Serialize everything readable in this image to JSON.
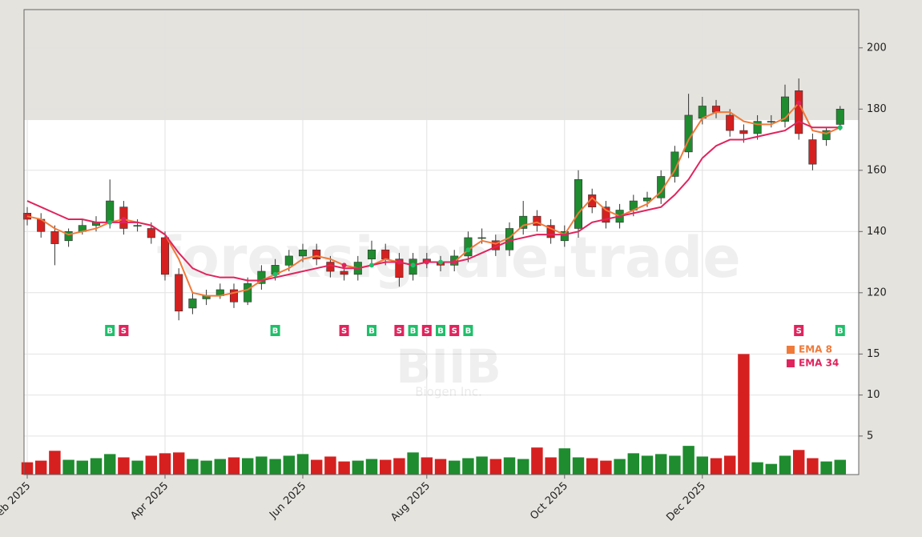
{
  "chart_data": {
    "type": "candlestick",
    "watermark": "forexsignale.trade",
    "symbol": "BIIB",
    "company": "Biogen Inc.",
    "categories": [
      "Feb 2025",
      null,
      null,
      null,
      null,
      null,
      null,
      null,
      null,
      null,
      "Apr 2025",
      null,
      null,
      null,
      null,
      null,
      null,
      null,
      null,
      null,
      "Jun 2025",
      null,
      null,
      null,
      null,
      null,
      null,
      null,
      null,
      "Aug 2025",
      null,
      null,
      null,
      null,
      null,
      null,
      null,
      null,
      null,
      "Oct 2025",
      null,
      null,
      null,
      null,
      null,
      null,
      null,
      null,
      null,
      "Dec 2025",
      null,
      null,
      null,
      null,
      null,
      null,
      null,
      null,
      null,
      null
    ],
    "open": [
      146,
      144,
      140,
      137,
      140,
      142,
      143,
      148,
      142,
      141,
      138,
      126,
      115,
      118,
      119,
      121,
      117,
      123,
      126,
      129,
      132,
      134,
      130,
      127,
      126,
      131,
      134,
      131,
      126,
      131,
      130,
      129,
      132,
      138,
      137,
      134,
      141,
      145,
      142,
      137,
      141,
      152,
      148,
      143,
      147,
      150,
      151,
      158,
      166,
      177,
      181,
      178,
      173,
      172,
      176,
      176,
      186,
      170,
      170,
      175
    ],
    "high": [
      148,
      146,
      142,
      141,
      144,
      145,
      157,
      150,
      144,
      143,
      140,
      128,
      120,
      121,
      123,
      123,
      125,
      129,
      131,
      134,
      136,
      136,
      132,
      129,
      132,
      137,
      136,
      133,
      133,
      133,
      132,
      134,
      140,
      141,
      139,
      143,
      150,
      147,
      144,
      142,
      160,
      154,
      150,
      149,
      152,
      153,
      160,
      168,
      185,
      184,
      183,
      180,
      175,
      178,
      178,
      188,
      190,
      172,
      174,
      181
    ],
    "low": [
      142,
      138,
      129,
      135,
      139,
      140,
      141,
      139,
      140,
      136,
      124,
      111,
      113,
      116,
      118,
      115,
      116,
      121,
      124,
      127,
      130,
      129,
      125,
      124,
      124,
      129,
      129,
      122,
      124,
      128,
      127,
      127,
      130,
      136,
      132,
      132,
      139,
      140,
      136,
      135,
      138,
      146,
      141,
      141,
      145,
      148,
      149,
      156,
      164,
      175,
      177,
      171,
      169,
      170,
      174,
      174,
      170,
      160,
      168,
      173
    ],
    "close": [
      144,
      140,
      136,
      140,
      142,
      143,
      150,
      141,
      142,
      138,
      126,
      114,
      118,
      119,
      121,
      117,
      123,
      127,
      129,
      132,
      134,
      131,
      127,
      126,
      130,
      134,
      131,
      125,
      131,
      130,
      129,
      132,
      138,
      138,
      134,
      141,
      145,
      142,
      138,
      140,
      157,
      148,
      143,
      147,
      150,
      151,
      158,
      166,
      178,
      181,
      179,
      173,
      172,
      176,
      176,
      184,
      172,
      162,
      173,
      180
    ],
    "volume": [
      1.8,
      2.0,
      3.2,
      2.1,
      2.0,
      2.3,
      2.8,
      2.4,
      2.0,
      2.6,
      2.9,
      3.0,
      2.2,
      2.0,
      2.2,
      2.4,
      2.3,
      2.5,
      2.2,
      2.6,
      2.8,
      2.1,
      2.5,
      1.9,
      2.0,
      2.2,
      2.1,
      2.3,
      3.0,
      2.4,
      2.2,
      2.0,
      2.3,
      2.5,
      2.2,
      2.4,
      2.2,
      3.6,
      2.4,
      3.5,
      2.4,
      2.3,
      2.0,
      2.2,
      2.9,
      2.6,
      2.8,
      2.6,
      3.8,
      2.5,
      2.3,
      2.6,
      15,
      1.8,
      1.6,
      2.6,
      3.3,
      2.3,
      1.9,
      2.1
    ],
    "up_color": "#1e8c2f",
    "down_color": "#d62020",
    "series": [
      {
        "name": "EMA 8",
        "color": "#f07a3a",
        "values": [
          145,
          144,
          141,
          139,
          140,
          141,
          143,
          144,
          143,
          142,
          139,
          131,
          120,
          119,
          119,
          120,
          121,
          124,
          126,
          128,
          131,
          132,
          131,
          129,
          128,
          129,
          131,
          130,
          129,
          130,
          130,
          130,
          134,
          137,
          136,
          138,
          142,
          143,
          141,
          139,
          146,
          151,
          147,
          145,
          147,
          149,
          153,
          160,
          170,
          177,
          179,
          179,
          176,
          175,
          175,
          177,
          182,
          173,
          172,
          174
        ]
      },
      {
        "name": "EMA 34",
        "color": "#e0245e",
        "values": [
          150,
          148,
          146,
          144,
          144,
          143,
          143,
          143,
          143,
          142,
          139,
          133,
          128,
          126,
          125,
          125,
          124,
          124,
          125,
          126,
          127,
          128,
          129,
          128,
          128,
          129,
          130,
          130,
          129,
          130,
          130,
          130,
          131,
          133,
          135,
          137,
          138,
          139,
          139,
          139,
          140,
          143,
          144,
          145,
          146,
          147,
          148,
          152,
          157,
          164,
          168,
          170,
          170,
          171,
          172,
          173,
          176,
          174,
          174,
          174
        ]
      }
    ],
    "signals": [
      {
        "index": 6,
        "label": "B"
      },
      {
        "index": 7,
        "label": "S"
      },
      {
        "index": 18,
        "label": "B"
      },
      {
        "index": 23,
        "label": "S"
      },
      {
        "index": 25,
        "label": "B"
      },
      {
        "index": 27,
        "label": "S"
      },
      {
        "index": 28,
        "label": "B"
      },
      {
        "index": 29,
        "label": "S"
      },
      {
        "index": 30,
        "label": "B"
      },
      {
        "index": 31,
        "label": "S"
      },
      {
        "index": 32,
        "label": "B"
      },
      {
        "index": 56,
        "label": "S"
      },
      {
        "index": 59,
        "label": "B"
      }
    ],
    "signal_colors": {
      "B": "#1fbf6a",
      "S": "#e0245e"
    },
    "ylim": [
      104,
      212.5
    ],
    "yticks": [
      120,
      140,
      160,
      180,
      200
    ],
    "y2lim": [
      0.3,
      16.5
    ],
    "y2ticks": [
      5,
      10,
      15
    ],
    "grid": true
  }
}
